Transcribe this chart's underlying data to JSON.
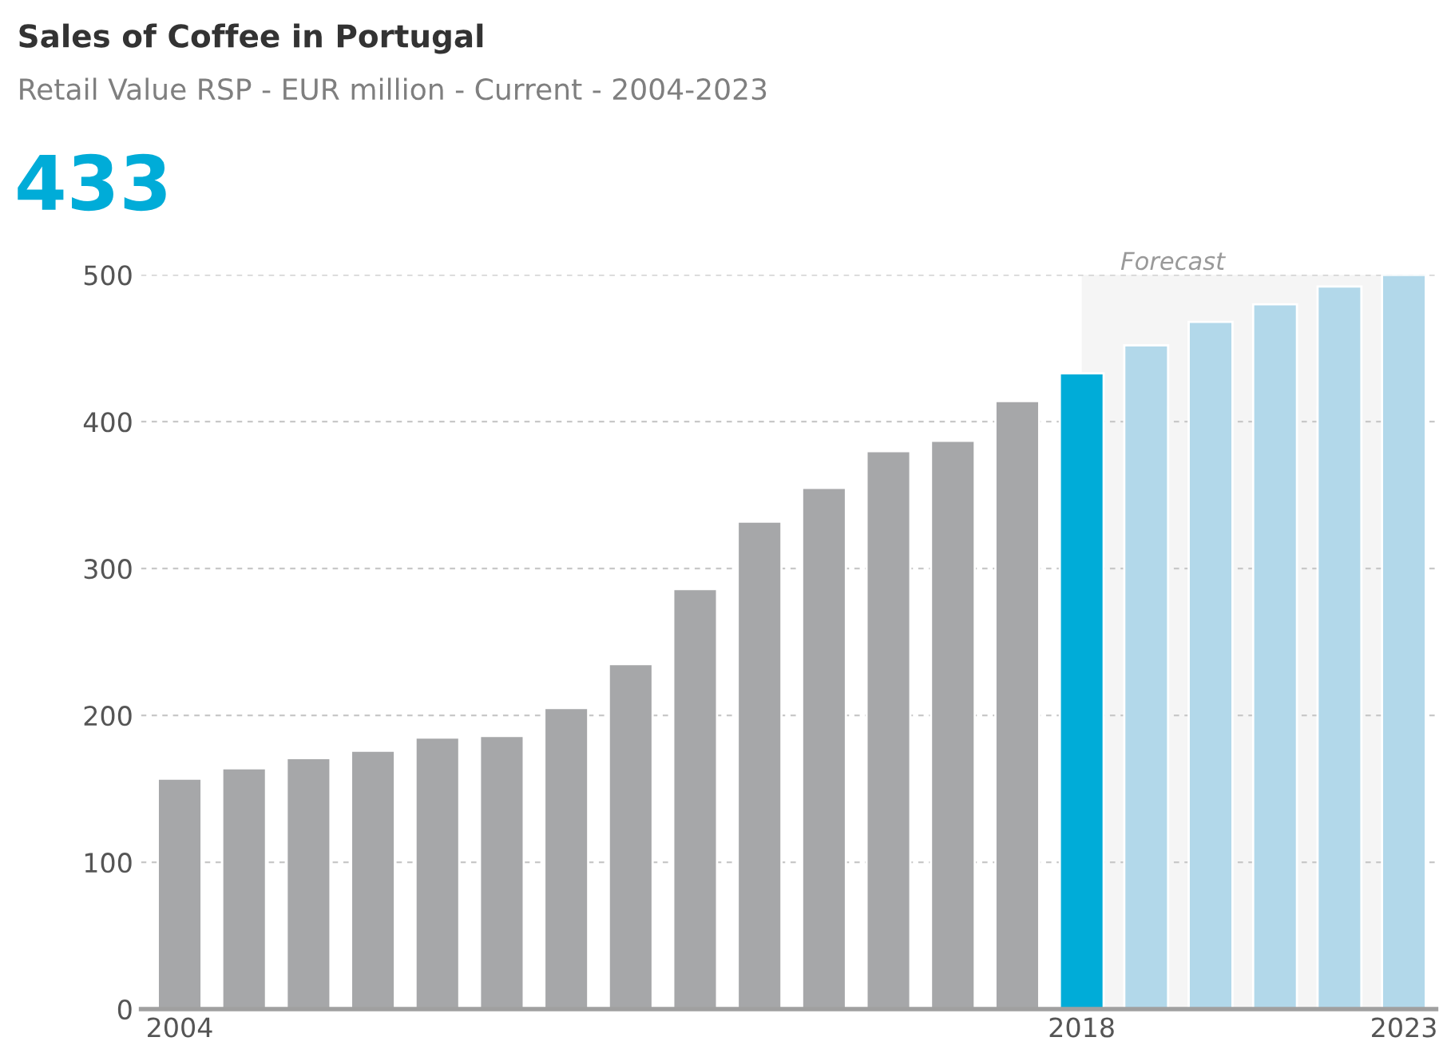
{
  "chart_data": {
    "type": "bar",
    "title": "Sales of Coffee in Portugal",
    "subtitle": "Retail Value RSP - EUR million - Current - 2004-2023",
    "annotations": [
      "433"
    ],
    "categories": [
      "2004",
      null,
      null,
      null,
      null,
      null,
      null,
      null,
      null,
      null,
      null,
      null,
      null,
      null,
      "2018",
      null,
      null,
      null,
      null,
      "2023"
    ],
    "values": [
      157,
      164,
      171,
      176,
      185,
      186,
      205,
      235,
      286,
      332,
      355,
      380,
      387,
      414,
      433,
      452,
      468,
      480,
      492,
      500
    ],
    "colors": [
      "#a6a7a9",
      "#a6a7a9",
      "#a6a7a9",
      "#a6a7a9",
      "#a6a7a9",
      "#a6a7a9",
      "#a6a7a9",
      "#a6a7a9",
      "#a6a7a9",
      "#a6a7a9",
      "#a6a7a9",
      "#a6a7a9",
      "#a6a7a9",
      "#a6a7a9",
      "#00acd8",
      "#b2d8ea",
      "#b2d8ea",
      "#b2d8ea",
      "#b2d8ea",
      "#b2d8ea"
    ],
    "ylim": [
      0,
      500
    ],
    "yticks": [
      0,
      100,
      200,
      300,
      400,
      500
    ],
    "grid": "y",
    "bands": [
      {
        "axis": "x",
        "from": "2018",
        "to": "2023",
        "label": "Forecast",
        "color": "#f5f5f5"
      }
    ]
  }
}
